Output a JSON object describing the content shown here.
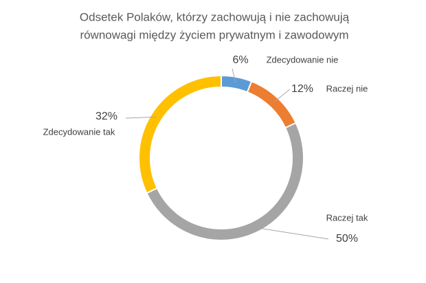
{
  "chart_data": {
    "type": "donut",
    "title": [
      "Odsetek Polaków, którzy zachowują i nie zachowują",
      "równowagi między życiem prywatnym i zawodowym"
    ],
    "categories": [
      "Zdecydowanie nie",
      "Raczej nie",
      "Raczej tak",
      "Zdecydowanie tak"
    ],
    "values": [
      6,
      12,
      50,
      32
    ],
    "value_labels": [
      "6%",
      "12%",
      "50%",
      "32%"
    ],
    "colors": [
      "#5b9bd5",
      "#ed7d31",
      "#a5a5a5",
      "#ffc000"
    ]
  }
}
